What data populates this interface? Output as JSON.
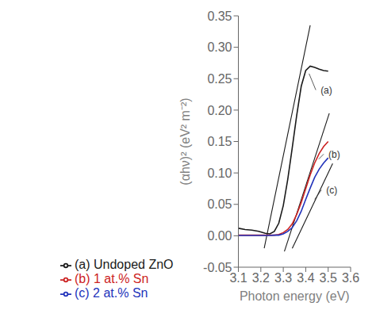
{
  "chart_data": {
    "type": "line",
    "xlabel": "Photon energy (eV)",
    "ylabel": "(αhν)² (eV² m⁻²)",
    "xlim": [
      3.1,
      3.6
    ],
    "ylim": [
      -0.05,
      0.35
    ],
    "xticks": [
      3.1,
      3.2,
      3.3,
      3.4,
      3.5,
      3.6
    ],
    "yticks": [
      {
        "value": -0.05,
        "label": "-0.05"
      },
      {
        "value": 0.0,
        "label": "0.00"
      },
      {
        "value": 0.05,
        "label": "0.05"
      },
      {
        "value": 0.1,
        "label": "0.10"
      },
      {
        "value": 0.15,
        "label": "0.15"
      },
      {
        "value": 0.2,
        "label": "0.20"
      },
      {
        "value": 0.25,
        "label": "0.25"
      },
      {
        "value": 0.3,
        "label": "0.30"
      },
      {
        "value": 0.35,
        "label": "0.35"
      }
    ],
    "series": [
      {
        "name": "(a) Undoped ZnO",
        "color": "#1a1a1a",
        "x": [
          3.1,
          3.13,
          3.16,
          3.19,
          3.22,
          3.24,
          3.26,
          3.28,
          3.3,
          3.32,
          3.34,
          3.36,
          3.38,
          3.4,
          3.42,
          3.44,
          3.46,
          3.48,
          3.5
        ],
        "values": [
          0.012,
          0.01,
          0.009,
          0.007,
          0.004,
          0.003,
          0.007,
          0.02,
          0.048,
          0.09,
          0.14,
          0.192,
          0.238,
          0.263,
          0.27,
          0.268,
          0.265,
          0.263,
          0.262
        ]
      },
      {
        "name": "(b) 1 at.% Sn",
        "color": "#cc2222",
        "x": [
          3.1,
          3.15,
          3.2,
          3.22,
          3.24,
          3.26,
          3.28,
          3.3,
          3.32,
          3.34,
          3.36,
          3.38,
          3.4,
          3.42,
          3.44,
          3.46,
          3.48,
          3.5
        ],
        "values": [
          0.001,
          0.001,
          0.001,
          0.001,
          0.001,
          0.001,
          0.002,
          0.005,
          0.01,
          0.019,
          0.034,
          0.053,
          0.075,
          0.097,
          0.116,
          0.131,
          0.142,
          0.15
        ]
      },
      {
        "name": "(c) 2 at.% Sn",
        "color": "#2233bb",
        "x": [
          3.1,
          3.15,
          3.2,
          3.22,
          3.24,
          3.26,
          3.28,
          3.3,
          3.32,
          3.34,
          3.36,
          3.38,
          3.4,
          3.42,
          3.44,
          3.46,
          3.48,
          3.5
        ],
        "values": [
          0.0005,
          0.0005,
          0.0005,
          0.0005,
          0.0005,
          0.001,
          0.001,
          0.003,
          0.007,
          0.013,
          0.024,
          0.039,
          0.058,
          0.076,
          0.093,
          0.106,
          0.116,
          0.124
        ]
      }
    ],
    "tangents": [
      {
        "color": "#1a1a1a",
        "x": [
          3.215,
          3.42
        ],
        "values": [
          -0.02,
          0.335
        ]
      },
      {
        "color": "#1a1a1a",
        "x": [
          3.305,
          3.505
        ],
        "values": [
          -0.025,
          0.195
        ]
      },
      {
        "color": "#1a1a1a",
        "x": [
          3.34,
          3.52
        ],
        "values": [
          -0.02,
          0.115
        ]
      }
    ],
    "annotations": [
      {
        "text": "(a)",
        "xytext": [
          3.445,
          0.232
        ],
        "xy": [
          3.415,
          0.258
        ],
        "color": "#333333"
      },
      {
        "text": "(b)",
        "xytext": [
          3.48,
          0.13
        ],
        "xy": [
          3.458,
          0.122
        ],
        "color": "#333333"
      },
      {
        "text": "(c)",
        "xytext": [
          3.47,
          0.073
        ],
        "xy": [
          3.44,
          0.058
        ],
        "color": "#333333"
      }
    ]
  }
}
